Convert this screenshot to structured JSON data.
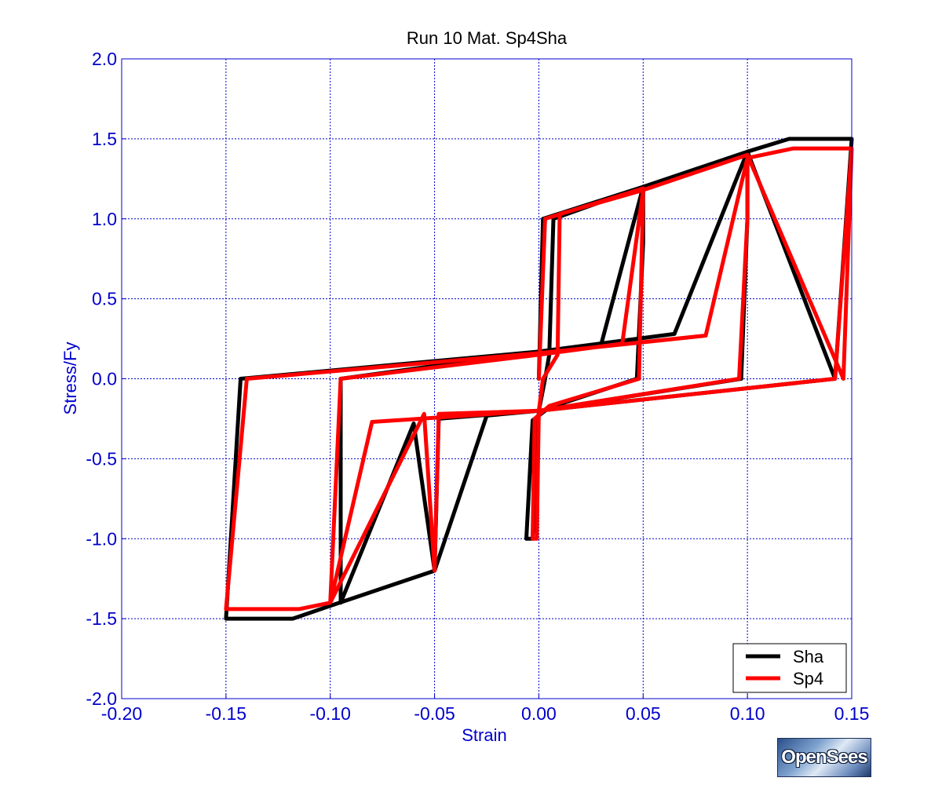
{
  "chart_data": {
    "type": "line",
    "title": "Run 10   Mat. Sp4Sha",
    "xlabel": "Strain",
    "ylabel": "Stress/Fy",
    "xlim": [
      -0.2,
      0.15
    ],
    "ylim": [
      -2.0,
      2.0
    ],
    "xticks": [
      -0.2,
      -0.15,
      -0.1,
      -0.05,
      0.0,
      0.05,
      0.1,
      0.15
    ],
    "yticks": [
      2.0,
      1.5,
      1.0,
      0.5,
      0.0,
      -0.5,
      -1.0,
      -1.5,
      -2.0
    ],
    "xtick_labels": [
      "-0.20",
      "-0.15",
      "-0.10",
      "-0.05",
      "0.00",
      "0.05",
      "0.10",
      "0.15"
    ],
    "ytick_labels": [
      "2.0",
      "1.5",
      "1.0",
      "0.5",
      "0.0",
      "-0.5",
      "-1.0",
      "-1.5",
      "-2.0"
    ],
    "grid": true,
    "legend_position": "bottom-right",
    "colors": {
      "axis": "#0000cc",
      "grid": "#0000cc"
    },
    "series": [
      {
        "name": "Sha",
        "color": "#000000",
        "points": [
          [
            0.0,
            0.0
          ],
          [
            0.002,
            1.0
          ],
          [
            0.05,
            1.2
          ],
          [
            0.05,
            0.85
          ],
          [
            0.047,
            0.0
          ],
          [
            0.005,
            -0.18
          ],
          [
            -0.003,
            -0.26
          ],
          [
            -0.006,
            -1.0
          ],
          [
            -0.003,
            -1.0
          ],
          [
            0.0,
            -0.2
          ],
          [
            0.003,
            0.0
          ],
          [
            0.005,
            0.15
          ],
          [
            0.007,
            1.0
          ],
          [
            0.05,
            1.2
          ],
          [
            0.1,
            1.4
          ],
          [
            0.1,
            1.0
          ],
          [
            0.097,
            0.0
          ],
          [
            0.0,
            -0.2
          ],
          [
            -0.048,
            -0.25
          ],
          [
            -0.05,
            -1.2
          ],
          [
            -0.06,
            -0.28
          ],
          [
            -0.095,
            -1.4
          ],
          [
            -0.095,
            0.0
          ],
          [
            0.0,
            0.17
          ],
          [
            0.03,
            0.22
          ],
          [
            0.05,
            1.2
          ],
          [
            0.1,
            1.42
          ],
          [
            0.142,
            0.0
          ],
          [
            0.15,
            1.5
          ],
          [
            0.12,
            1.5
          ],
          [
            0.1,
            1.42
          ],
          [
            0.065,
            0.28
          ],
          [
            0.0,
            0.17
          ],
          [
            -0.143,
            0.0
          ],
          [
            -0.15,
            -1.5
          ],
          [
            -0.118,
            -1.5
          ],
          [
            -0.1,
            -1.42
          ],
          [
            -0.05,
            -1.2
          ],
          [
            -0.025,
            -0.23
          ],
          [
            0.0,
            -0.2
          ],
          [
            0.142,
            0.0
          ],
          [
            0.15,
            1.5
          ]
        ]
      },
      {
        "name": "Sp4",
        "color": "#ff0000",
        "points": [
          [
            0.0,
            0.0
          ],
          [
            0.003,
            1.0
          ],
          [
            0.05,
            1.19
          ],
          [
            0.048,
            0.0
          ],
          [
            0.005,
            -0.17
          ],
          [
            -0.002,
            -0.25
          ],
          [
            -0.003,
            -1.0
          ],
          [
            -0.001,
            -1.0
          ],
          [
            0.0,
            -0.2
          ],
          [
            0.002,
            0.0
          ],
          [
            0.009,
            0.15
          ],
          [
            0.01,
            1.03
          ],
          [
            0.05,
            1.18
          ],
          [
            0.1,
            1.4
          ],
          [
            0.1,
            1.0
          ],
          [
            0.096,
            0.0
          ],
          [
            0.0,
            -0.2
          ],
          [
            -0.048,
            -0.22
          ],
          [
            -0.05,
            -1.2
          ],
          [
            -0.055,
            -0.22
          ],
          [
            -0.1,
            -1.4
          ],
          [
            -0.095,
            0.0
          ],
          [
            0.0,
            0.15
          ],
          [
            0.04,
            0.22
          ],
          [
            0.05,
            1.18
          ],
          [
            0.1,
            1.4
          ],
          [
            0.146,
            0.0
          ],
          [
            0.15,
            1.44
          ],
          [
            0.122,
            1.44
          ],
          [
            0.1,
            1.38
          ],
          [
            0.08,
            0.27
          ],
          [
            0.0,
            0.16
          ],
          [
            -0.14,
            0.0
          ],
          [
            -0.15,
            -1.44
          ],
          [
            -0.115,
            -1.44
          ],
          [
            -0.1,
            -1.4
          ],
          [
            -0.08,
            -0.27
          ],
          [
            0.0,
            -0.2
          ],
          [
            0.142,
            0.0
          ],
          [
            0.15,
            1.44
          ]
        ]
      }
    ]
  },
  "logo": {
    "text": "OpenSees"
  }
}
